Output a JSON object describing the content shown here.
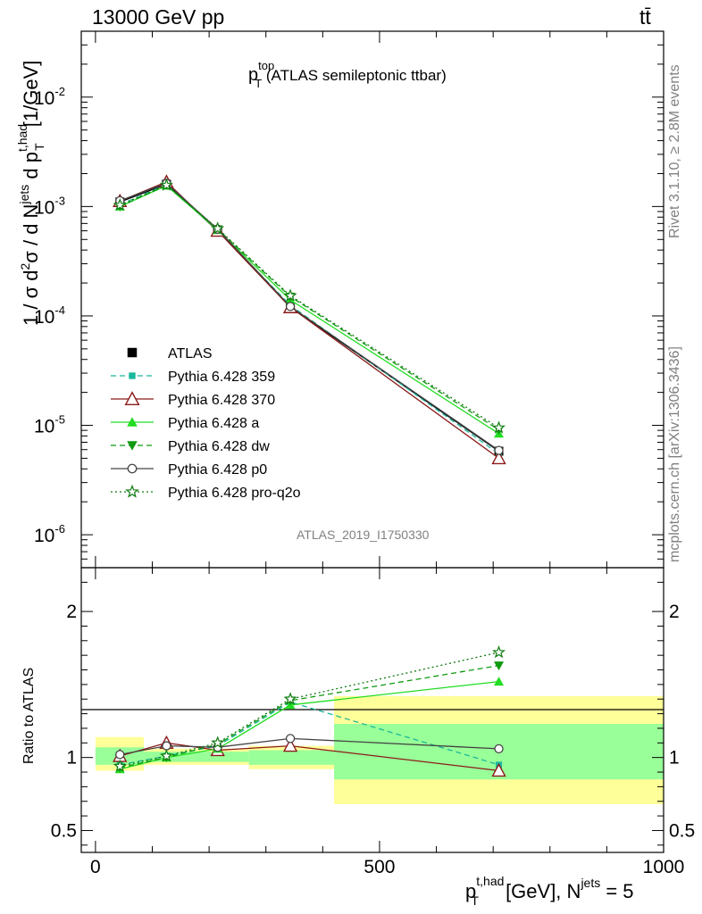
{
  "header": {
    "left": "13000 GeV pp",
    "right": "tt̄"
  },
  "side": {
    "rivet": "Rivet 3.1.10, ≥ 2.8M events",
    "mcplots": "mcplots.cern.ch [arXiv:1306.3436]"
  },
  "chart_data": [
    {
      "type": "line",
      "title_main": "p",
      "title_sup": "top",
      "title_sub": "T",
      "title_rest": " (ATLAS semileptonic ttbar)",
      "watermark": "ATLAS_2019_I1750330",
      "ylabel_parts": {
        "a": "1 / σ d",
        "b": "2",
        "c": "σ /  d N",
        "d": "jets",
        "e": " d p",
        "f": "t,had",
        "g": "T",
        "h": " [1/GeV]"
      },
      "yscale": "log",
      "ylim": [
        5e-07,
        0.04
      ],
      "xlim": [
        -25,
        1000
      ],
      "yticks": [
        {
          "v": 1e-06,
          "m": "10",
          "e": "-6"
        },
        {
          "v": 1e-05,
          "m": "10",
          "e": "-5"
        },
        {
          "v": 0.0001,
          "m": "10",
          "e": "-4"
        },
        {
          "v": 0.001,
          "m": "10",
          "e": "-3"
        },
        {
          "v": 0.01,
          "m": "10",
          "e": "-2"
        }
      ],
      "x": [
        43,
        125,
        215,
        343,
        710
      ],
      "bin_edges": [
        0,
        85,
        170,
        270,
        420,
        1000
      ],
      "legend_position": "lower-left",
      "series": [
        {
          "name": "ATLAS",
          "values": [
            0.0011,
            0.0016,
            0.0006,
            0.00012,
            5.8e-06
          ],
          "color": "#000000",
          "marker": "square",
          "dash": "none"
        },
        {
          "name": "Pythia 6.428 359",
          "values": [
            0.00104,
            0.00159,
            0.000606,
            0.000125,
            5.5e-06
          ],
          "color": "#1bb89a",
          "marker": "smallsquare",
          "dash": "dashed"
        },
        {
          "name": "Pythia 6.428 370",
          "values": [
            0.00112,
            0.00168,
            0.0006,
            0.00012,
            5e-06
          ],
          "color": "#8b1a1a",
          "marker": "opentriangle",
          "dash": "none"
        },
        {
          "name": "Pythia 6.428 a",
          "values": [
            0.001,
            0.00155,
            0.00061,
            0.00014,
            8.4e-06
          ],
          "color": "#22dd22",
          "marker": "triangle",
          "dash": "none"
        },
        {
          "name": "Pythia 6.428 dw",
          "values": [
            0.001,
            0.00157,
            0.00062,
            0.00015,
            9.1e-06
          ],
          "color": "#109a10",
          "marker": "invtriangle",
          "dash": "dashed"
        },
        {
          "name": "Pythia 6.428 p0",
          "values": [
            0.00113,
            0.00163,
            0.00062,
            0.000122,
            5.9e-06
          ],
          "color": "#444444",
          "marker": "opencircle",
          "dash": "none"
        },
        {
          "name": "Pythia 6.428 pro-q2o",
          "values": [
            0.00103,
            0.00157,
            0.00063,
            0.000153,
            9.5e-06
          ],
          "color": "#117a11",
          "marker": "openstar",
          "dash": "dotted"
        }
      ]
    },
    {
      "type": "line",
      "ylabel": "Ratio to ATLAS",
      "xlabel_parts": {
        "a": "p",
        "b": "t,had",
        "c": "T",
        "d": " [GeV], N",
        "e": "jets",
        "f": " = 5"
      },
      "ylim": [
        0.35,
        2.3
      ],
      "xlim": [
        -25,
        1000
      ],
      "yticks": [
        {
          "v": 0.5,
          "label": "0.5"
        },
        {
          "v": 1,
          "label": "1"
        },
        {
          "v": 2,
          "label": "2"
        }
      ],
      "xticks": [
        {
          "v": 0,
          "label": "0"
        },
        {
          "v": 500,
          "label": "500"
        },
        {
          "v": 1000,
          "label": "1000"
        }
      ],
      "bands": [
        {
          "x0": 0,
          "x1": 85,
          "stat": [
            0.95,
            1.07
          ],
          "total": [
            0.91,
            1.14
          ]
        },
        {
          "x0": 85,
          "x1": 170,
          "stat": [
            0.97,
            1.04
          ],
          "total": [
            0.95,
            1.06
          ]
        },
        {
          "x0": 170,
          "x1": 270,
          "stat": [
            0.97,
            1.04
          ],
          "total": [
            0.95,
            1.06
          ]
        },
        {
          "x0": 270,
          "x1": 420,
          "stat": [
            0.95,
            1.05
          ],
          "total": [
            0.92,
            1.08
          ]
        },
        {
          "x0": 420,
          "x1": 1000,
          "stat": [
            0.85,
            1.23
          ],
          "total": [
            0.68,
            1.42
          ]
        }
      ],
      "series": [
        {
          "name": "Pythia 6.428 359",
          "values": [
            0.95,
            1.01,
            1.08,
            1.38,
            0.95
          ]
        },
        {
          "name": "Pythia 6.428 370",
          "values": [
            1.01,
            1.1,
            1.05,
            1.08,
            0.91
          ]
        },
        {
          "name": "Pythia 6.428 a",
          "values": [
            0.92,
            1.0,
            1.06,
            1.36,
            1.52
          ]
        },
        {
          "name": "Pythia 6.428 dw",
          "values": [
            0.93,
            1.0,
            1.09,
            1.39,
            1.63
          ]
        },
        {
          "name": "Pythia 6.428 p0",
          "values": [
            1.02,
            1.08,
            1.07,
            1.13,
            1.06
          ]
        },
        {
          "name": "Pythia 6.428 pro-q2o",
          "values": [
            0.94,
            1.01,
            1.1,
            1.4,
            1.72
          ]
        }
      ]
    }
  ]
}
